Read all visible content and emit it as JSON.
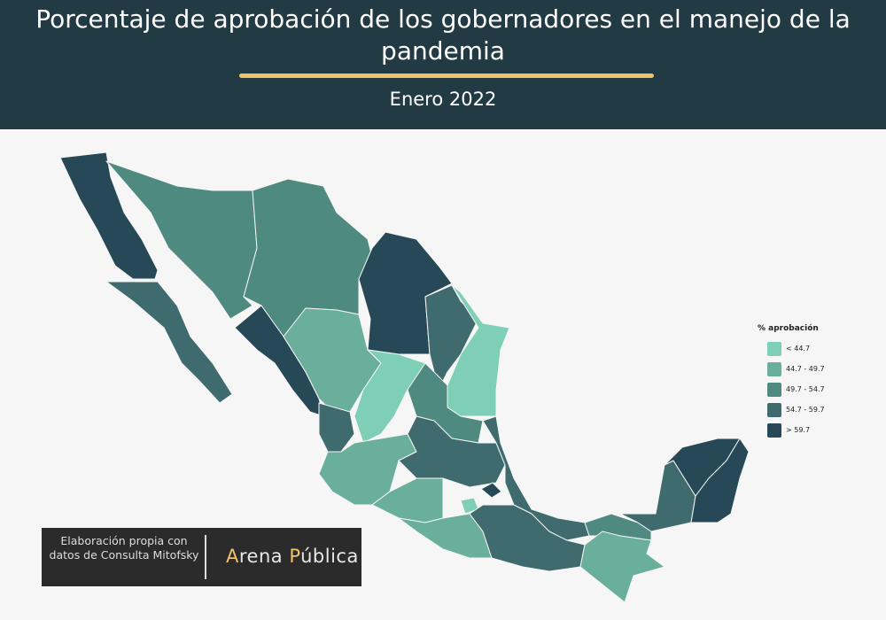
{
  "header": {
    "title": "Porcentaje de aprobación de los gobernadores en el manejo de la pandemia",
    "subtitle": "Enero 2022"
  },
  "legend": {
    "title": "% aprobación",
    "items": [
      {
        "label": "< 44.7",
        "color": "#7ecfb5"
      },
      {
        "label": "44.7 - 49.7",
        "color": "#6aaf9c"
      },
      {
        "label": "49.7 - 54.7",
        "color": "#4f8a80"
      },
      {
        "label": "54.7 - 59.7",
        "color": "#3f6b6e"
      },
      {
        "label": "> 59.7",
        "color": "#274957"
      }
    ]
  },
  "credit": {
    "text": "Elaboración propia con datos de Consulta Mitofsky",
    "logo": [
      "A",
      "rena ",
      "P",
      "ública"
    ]
  }
}
